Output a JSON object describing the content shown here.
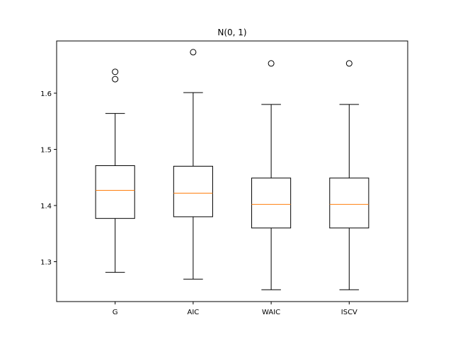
{
  "chart_data": {
    "type": "box",
    "title": "N(0, 1)",
    "xlabel": "",
    "ylabel": "",
    "ylim": [
      1.229,
      1.693
    ],
    "yticks": [
      1.3,
      1.4,
      1.5,
      1.6
    ],
    "categories": [
      "G",
      "AIC",
      "WAIC",
      "ISCV"
    ],
    "boxes": [
      {
        "label": "G",
        "whisker_low": 1.281,
        "q1": 1.377,
        "median": 1.427,
        "q3": 1.471,
        "whisker_high": 1.564,
        "fliers": [
          1.625,
          1.638
        ]
      },
      {
        "label": "AIC",
        "whisker_low": 1.269,
        "q1": 1.38,
        "median": 1.422,
        "q3": 1.47,
        "whisker_high": 1.601,
        "fliers": [
          1.673
        ]
      },
      {
        "label": "WAIC",
        "whisker_low": 1.25,
        "q1": 1.36,
        "median": 1.402,
        "q3": 1.449,
        "whisker_high": 1.58,
        "fliers": [
          1.653
        ]
      },
      {
        "label": "ISCV",
        "whisker_low": 1.25,
        "q1": 1.36,
        "median": 1.402,
        "q3": 1.449,
        "whisker_high": 1.58,
        "fliers": [
          1.653
        ]
      }
    ],
    "grid": false,
    "colors": {
      "box": "#000000",
      "median": "#ff7f0e",
      "flier": "#000000"
    }
  }
}
